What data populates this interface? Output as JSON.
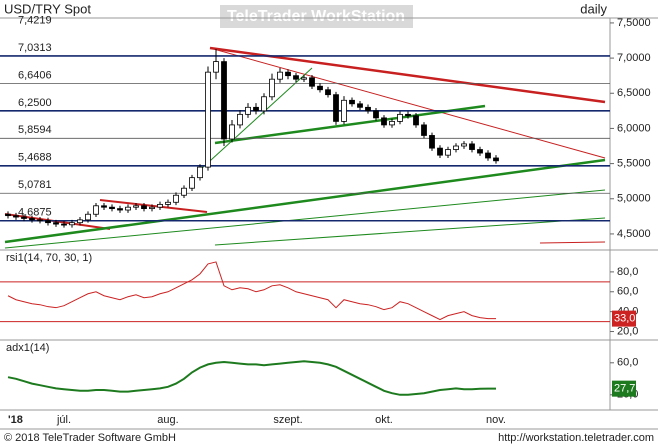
{
  "header": {
    "title": "USD/TRY Spot",
    "watermark": "TeleTrader WorkStation",
    "period": "daily"
  },
  "footer": {
    "copyright": "© 2018 TeleTrader Software GmbH",
    "url": "http://workstation.teletrader.com"
  },
  "chart_data": [
    {
      "type": "candlestick",
      "categories": [
        "'18",
        null,
        null,
        null,
        null,
        null,
        null,
        "júl.",
        null,
        null,
        null,
        null,
        null,
        null,
        null,
        null,
        null,
        null,
        null,
        null,
        "aug.",
        null,
        null,
        null,
        null,
        null,
        null,
        null,
        null,
        null,
        null,
        null,
        null,
        null,
        null,
        "szept.",
        null,
        null,
        null,
        null,
        null,
        null,
        null,
        null,
        null,
        null,
        null,
        "okt.",
        null,
        null,
        null,
        null,
        null,
        null,
        null,
        null,
        null,
        null,
        null,
        null,
        null,
        "nov."
      ],
      "open": [
        4.78,
        4.76,
        4.74,
        4.72,
        4.7,
        4.69,
        4.66,
        4.64,
        4.63,
        4.66,
        4.7,
        4.78,
        4.9,
        4.88,
        4.86,
        4.84,
        4.88,
        4.9,
        4.86,
        4.88,
        4.92,
        4.95,
        5.05,
        5.15,
        5.3,
        5.45,
        6.8,
        6.95,
        5.85,
        6.05,
        6.2,
        6.3,
        6.25,
        6.45,
        6.7,
        6.8,
        6.75,
        6.7,
        6.72,
        6.6,
        6.55,
        6.48,
        6.1,
        6.4,
        6.35,
        6.3,
        6.25,
        6.15,
        6.05,
        6.1,
        6.2,
        6.18,
        6.05,
        5.9,
        5.72,
        5.62,
        5.7,
        5.75,
        5.78,
        5.7,
        5.65,
        5.58
      ],
      "high": [
        4.82,
        4.8,
        4.78,
        4.76,
        4.74,
        4.73,
        4.7,
        4.68,
        4.7,
        4.74,
        4.82,
        4.94,
        4.94,
        4.92,
        4.9,
        4.92,
        4.94,
        4.94,
        4.92,
        4.96,
        4.99,
        5.09,
        5.19,
        5.34,
        5.49,
        6.88,
        7.13,
        7.0,
        6.12,
        6.26,
        6.36,
        6.36,
        6.5,
        6.78,
        6.86,
        6.84,
        6.79,
        6.76,
        6.76,
        6.64,
        6.59,
        6.52,
        6.46,
        6.44,
        6.39,
        6.34,
        6.29,
        6.19,
        6.14,
        6.24,
        6.24,
        6.22,
        6.09,
        5.94,
        5.76,
        5.74,
        5.79,
        5.82,
        5.82,
        5.74,
        5.69,
        5.62
      ],
      "low": [
        4.72,
        4.7,
        4.68,
        4.66,
        4.65,
        4.62,
        4.6,
        4.59,
        4.59,
        4.62,
        4.66,
        4.74,
        4.84,
        4.82,
        4.8,
        4.8,
        4.84,
        4.82,
        4.82,
        4.84,
        4.88,
        4.91,
        5.01,
        5.11,
        5.26,
        5.4,
        6.7,
        5.75,
        5.8,
        6.0,
        6.15,
        6.2,
        6.2,
        6.4,
        6.65,
        6.7,
        6.66,
        6.66,
        6.56,
        6.51,
        6.44,
        6.05,
        6.06,
        6.31,
        6.26,
        6.21,
        6.11,
        6.01,
        6.01,
        6.06,
        6.14,
        6.01,
        5.86,
        5.68,
        5.58,
        5.58,
        5.66,
        5.71,
        5.66,
        5.61,
        5.54,
        5.5
      ],
      "close": [
        4.76,
        4.74,
        4.72,
        4.7,
        4.69,
        4.66,
        4.64,
        4.63,
        4.66,
        4.7,
        4.78,
        4.9,
        4.88,
        4.86,
        4.84,
        4.88,
        4.9,
        4.86,
        4.88,
        4.92,
        4.95,
        5.05,
        5.15,
        5.3,
        5.45,
        6.8,
        6.95,
        5.85,
        6.05,
        6.2,
        6.3,
        6.25,
        6.45,
        6.7,
        6.8,
        6.75,
        6.7,
        6.72,
        6.6,
        6.55,
        6.48,
        6.1,
        6.4,
        6.35,
        6.3,
        6.25,
        6.15,
        6.05,
        6.1,
        6.2,
        6.18,
        6.05,
        5.9,
        5.72,
        5.62,
        5.7,
        5.75,
        5.78,
        5.7,
        5.65,
        5.58,
        5.54
      ],
      "up_color": "#ffffff",
      "down_color": "#000000",
      "ylim": [
        4.3,
        7.57
      ],
      "yticks": [
        {
          "value": 4.5,
          "label": "4,5000"
        },
        {
          "value": 5,
          "label": "5,0000"
        },
        {
          "value": 5.5,
          "label": "5,5000"
        },
        {
          "value": 6,
          "label": "6,0000"
        },
        {
          "value": 6.5,
          "label": "6,5000"
        },
        {
          "value": 7,
          "label": "7,0000"
        },
        {
          "value": 7.5,
          "label": "7,5000"
        }
      ],
      "levels": [
        {
          "value": 7.4219,
          "label": "7,4219",
          "color": null
        },
        {
          "value": 7.0313,
          "label": "7,0313",
          "color": "#14286e"
        },
        {
          "value": 6.6406,
          "label": "6,6406",
          "color": "#555555"
        },
        {
          "value": 6.25,
          "label": "6,2500",
          "color": "#14286e"
        },
        {
          "value": 5.8594,
          "label": "5,8594",
          "color": "#555555"
        },
        {
          "value": 5.4688,
          "label": "5,4688",
          "color": "#14286e"
        },
        {
          "value": 5.0781,
          "label": "5,0781",
          "color": "#555555"
        },
        {
          "value": 4.6875,
          "label": "4,6875",
          "color": "#14286e"
        }
      ]
    },
    {
      "type": "line",
      "title": "rsi1(14, 70, 30, 1)",
      "color": "#cc2222",
      "values": [
        56,
        52,
        50,
        48,
        47,
        45,
        44,
        46,
        50,
        54,
        58,
        60,
        56,
        54,
        52,
        55,
        57,
        54,
        55,
        58,
        60,
        64,
        68,
        72,
        78,
        88,
        90,
        66,
        62,
        64,
        63,
        60,
        62,
        66,
        67,
        64,
        60,
        58,
        56,
        54,
        52,
        44,
        52,
        50,
        48,
        47,
        45,
        42,
        44,
        50,
        48,
        44,
        40,
        36,
        32,
        36,
        38,
        40,
        36,
        34,
        33,
        33
      ],
      "value_labels": [
        null,
        null,
        null,
        null,
        null,
        null,
        null,
        null,
        null,
        null,
        null,
        null,
        null,
        null,
        null,
        null,
        null,
        null,
        null,
        null,
        null,
        null,
        null,
        null,
        null,
        null,
        null,
        null,
        null,
        null,
        null,
        null,
        null,
        null,
        null,
        null,
        null,
        null,
        null,
        null,
        null,
        null,
        null,
        null,
        null,
        null,
        null,
        null,
        null,
        null,
        null,
        null,
        null,
        null,
        null,
        null,
        null,
        null,
        null,
        null,
        null,
        "33,0"
      ],
      "levels": [
        70,
        30
      ],
      "ylim": [
        13.5,
        100
      ],
      "yticks": [
        {
          "value": 20,
          "label": "20,0"
        },
        {
          "value": 40,
          "label": "40,0"
        },
        {
          "value": 60,
          "label": "60,0"
        },
        {
          "value": 80,
          "label": "80,0"
        }
      ]
    },
    {
      "type": "line",
      "title": "adx1(14)",
      "color": "#1e7a1e",
      "values": [
        42,
        40,
        37,
        34,
        32,
        30,
        28,
        27,
        26,
        25,
        25,
        26,
        26,
        25,
        24,
        24,
        25,
        26,
        27,
        28,
        30,
        34,
        40,
        48,
        54,
        58,
        60,
        61,
        60,
        59,
        58,
        58,
        57,
        58,
        59,
        60,
        61,
        62,
        61,
        60,
        58,
        55,
        50,
        45,
        40,
        35,
        30,
        25,
        22,
        20,
        20,
        21,
        22,
        24,
        26,
        27,
        28,
        27,
        27,
        27.5,
        27.7,
        27.7
      ],
      "value_labels": [
        null,
        null,
        null,
        null,
        null,
        null,
        null,
        null,
        null,
        null,
        null,
        null,
        null,
        null,
        null,
        null,
        null,
        null,
        null,
        null,
        null,
        null,
        null,
        null,
        null,
        null,
        null,
        null,
        null,
        null,
        null,
        null,
        null,
        null,
        null,
        null,
        null,
        null,
        null,
        null,
        null,
        null,
        null,
        null,
        null,
        null,
        null,
        null,
        null,
        null,
        null,
        null,
        null,
        null,
        null,
        null,
        null,
        null,
        null,
        null,
        null,
        "27,7"
      ],
      "ylim": [
        1,
        86
      ],
      "yticks": [
        {
          "value": 20,
          "label": "20,0"
        },
        {
          "value": 60,
          "label": "60,0"
        }
      ]
    }
  ]
}
